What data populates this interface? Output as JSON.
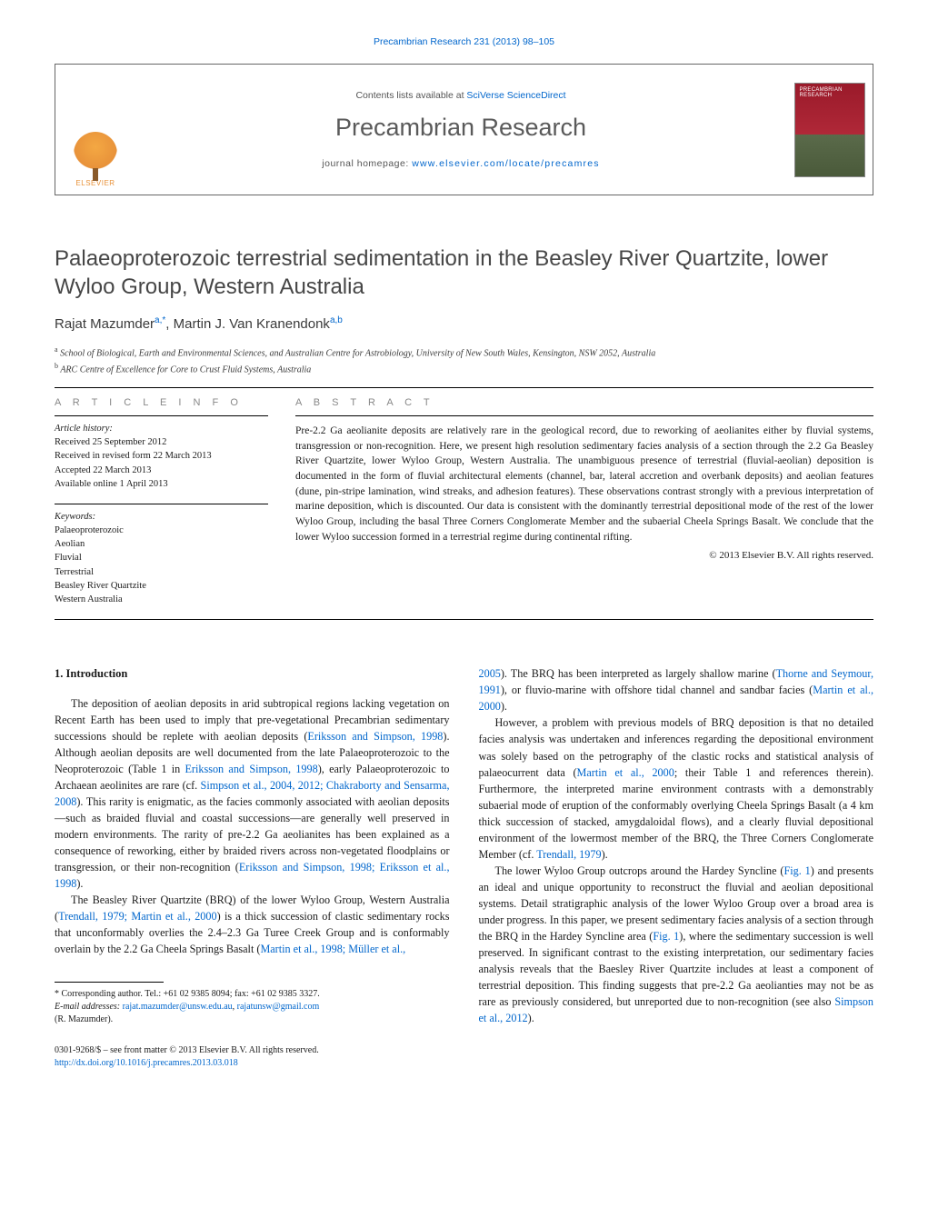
{
  "running_head": "Precambrian Research 231 (2013) 98–105",
  "banner": {
    "publisher_logo_text": "ELSEVIER",
    "contents_prefix": "Contents lists available at ",
    "contents_link": "SciVerse ScienceDirect",
    "journal_name": "Precambrian Research",
    "homepage_prefix": "journal homepage: ",
    "homepage_url": "www.elsevier.com/locate/precamres",
    "cover_label": "PRECAMBRIAN RESEARCH"
  },
  "title": "Palaeoproterozoic terrestrial sedimentation in the Beasley River Quartzite, lower Wyloo Group, Western Australia",
  "authors_html": "Rajat Mazumder<sup>a,*</sup>, Martin J. Van Kranendonk<sup>a,b</sup>",
  "affiliations": [
    {
      "sup": "a",
      "text": "School of Biological, Earth and Environmental Sciences, and Australian Centre for Astrobiology, University of New South Wales, Kensington, NSW 2052, Australia"
    },
    {
      "sup": "b",
      "text": "ARC Centre of Excellence for Core to Crust Fluid Systems, Australia"
    }
  ],
  "info": {
    "heading": "A R T I C L E    I N F O",
    "history_label": "Article history:",
    "history": [
      "Received 25 September 2012",
      "Received in revised form 22 March 2013",
      "Accepted 22 March 2013",
      "Available online 1 April 2013"
    ],
    "kw_label": "Keywords:",
    "keywords": [
      "Palaeoproterozoic",
      "Aeolian",
      "Fluvial",
      "Terrestrial",
      "Beasley River Quartzite",
      "Western Australia"
    ]
  },
  "abstract": {
    "heading": "A B S T R A C T",
    "text": "Pre-2.2 Ga aeolianite deposits are relatively rare in the geological record, due to reworking of aeolianites either by fluvial systems, transgression or non-recognition. Here, we present high resolution sedimentary facies analysis of a section through the 2.2 Ga Beasley River Quartzite, lower Wyloo Group, Western Australia. The unambiguous presence of terrestrial (fluvial-aeolian) deposition is documented in the form of fluvial architectural elements (channel, bar, lateral accretion and overbank deposits) and aeolian features (dune, pin-stripe lamination, wind streaks, and adhesion features). These observations contrast strongly with a previous interpretation of marine deposition, which is discounted. Our data is consistent with the dominantly terrestrial depositional mode of the rest of the lower Wyloo Group, including the basal Three Corners Conglomerate Member and the subaerial Cheela Springs Basalt. We conclude that the lower Wyloo succession formed in a terrestrial regime during continental rifting.",
    "copyright": "© 2013 Elsevier B.V. All rights reserved."
  },
  "body": {
    "sec1_head": "1.  Introduction",
    "left_p1_a": "The deposition of aeolian deposits in arid subtropical regions lacking vegetation on Recent Earth has been used to imply that pre-vegetational Precambrian sedimentary successions should be replete with aeolian deposits (",
    "left_p1_c1": "Eriksson and Simpson, 1998",
    "left_p1_b": "). Although aeolian deposits are well documented from the late Palaeoproterozoic to the Neoproterozoic (Table 1 in ",
    "left_p1_c2": "Eriksson and Simpson, 1998",
    "left_p1_c": "), early Palaeoproterozoic to Archaean aeolinites are rare (cf. ",
    "left_p1_c3": "Simpson et al., 2004, 2012; Chakraborty and Sensarma, 2008",
    "left_p1_d": "). This rarity is enigmatic, as the facies commonly associated with aeolian deposits—such as braided fluvial and coastal successions—are generally well preserved in modern environments. The rarity of pre-2.2 Ga aeolianites has been explained as a consequence of reworking, either by braided rivers across non-vegetated floodplains or transgression, or their non-recognition (",
    "left_p1_c4": "Eriksson and Simpson, 1998; Eriksson et al., 1998",
    "left_p1_e": ").",
    "left_p2_a": "The Beasley River Quartzite (BRQ) of the lower Wyloo Group, Western Australia (",
    "left_p2_c1": "Trendall, 1979; Martin et al., 2000",
    "left_p2_b": ") is a thick succession of clastic sedimentary rocks that unconformably overlies the 2.4–2.3 Ga Turee Creek Group and is conformably overlain by the 2.2 Ga Cheela Springs Basalt (",
    "left_p2_c2": "Martin et al., 1998; Müller et al.,",
    "right_p1_c1": "2005",
    "right_p1_a": "). The BRQ has been interpreted as largely shallow marine (",
    "right_p1_c2": "Thorne and Seymour, 1991",
    "right_p1_b": "), or fluvio-marine with offshore tidal channel and sandbar facies (",
    "right_p1_c3": "Martin et al., 2000",
    "right_p1_c": ").",
    "right_p2_a": "However, a problem with previous models of BRQ deposition is that no detailed facies analysis was undertaken and inferences regarding the depositional environment was solely based on the petrography of the clastic rocks and statistical analysis of palaeocurrent data (",
    "right_p2_c1": "Martin et al., 2000",
    "right_p2_b": "; their Table 1 and references therein). Furthermore, the interpreted marine environment contrasts with a demonstrably subaerial mode of eruption of the conformably overlying Cheela Springs Basalt (a 4 km thick succession of stacked, amygdaloidal flows), and a clearly fluvial depositional environment of the lowermost member of the BRQ, the Three Corners Conglomerate Member (cf. ",
    "right_p2_c2": "Trendall, 1979",
    "right_p2_c": ").",
    "right_p3_a": "The lower Wyloo Group outcrops around the Hardey Syncline (",
    "right_p3_c1": "Fig. 1",
    "right_p3_b": ") and presents an ideal and unique opportunity to reconstruct the fluvial and aeolian depositional systems. Detail stratigraphic analysis of the lower Wyloo Group over a broad area is under progress. In this paper, we present sedimentary facies analysis of a section through the BRQ in the Hardey Syncline area (",
    "right_p3_c2": "Fig. 1",
    "right_p3_c": "), where the sedimentary succession is well preserved. In significant contrast to the existing interpretation, our sedimentary facies analysis reveals that the Baesley River Quartzite includes at least a component of terrestrial deposition. This finding suggests that pre-2.2 Ga aeolianties may not be as rare as previously considered, but unreported due to non-recognition (see also ",
    "right_p3_c3": "Simpson et al., 2012",
    "right_p3_d": ")."
  },
  "footnote": {
    "corr_line": "* Corresponding author. Tel.: +61 02 9385 8094; fax: +61 02 9385 3327.",
    "email_prefix": "E-mail addresses: ",
    "email1": "rajat.mazumder@unsw.edu.au",
    "email_sep": ", ",
    "email2": "rajatunsw@gmail.com",
    "email_suffix": "(R. Mazumder).",
    "issn_line": "0301-9268/$ – see front matter © 2013 Elsevier B.V. All rights reserved.",
    "doi": "http://dx.doi.org/10.1016/j.precamres.2013.03.018"
  },
  "colors": {
    "link": "#0066cc",
    "heading_gray": "#464646",
    "muted": "#888888"
  }
}
